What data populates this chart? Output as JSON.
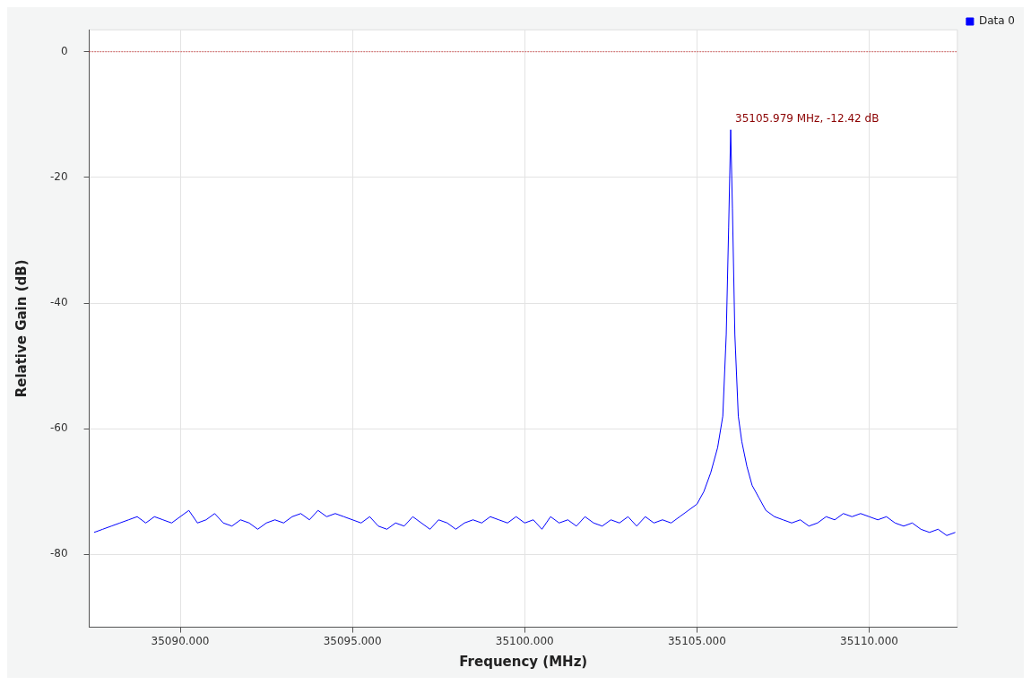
{
  "chart_data": {
    "type": "line",
    "xlabel": "Frequency (MHz)",
    "ylabel": "Relative Gain (dB)",
    "xlim": [
      35087.36,
      35112.56
    ],
    "ylim": [
      -91.6,
      3.5
    ],
    "xticks": [
      {
        "value": 35090,
        "label": "35090.000"
      },
      {
        "value": 35095,
        "label": "35095.000"
      },
      {
        "value": 35100,
        "label": "35100.000"
      },
      {
        "value": 35105,
        "label": "35105.000"
      },
      {
        "value": 35110,
        "label": "35110.000"
      }
    ],
    "yticks": [
      0,
      -20,
      -40,
      -60,
      -80
    ],
    "grid": true,
    "legend": "top right",
    "marker": "none",
    "line_style": "solid",
    "ref_lines": [
      {
        "axis": "y",
        "value": 0,
        "color": "#cc0000",
        "line_style": "dotted"
      }
    ],
    "annotations": [
      {
        "text": "35105.979 MHz, -12.42 dB",
        "x": 35105.979,
        "y": -12.42
      }
    ],
    "series": [
      {
        "name": "Data 0",
        "color": "#0000ff",
        "x": [
          35087.5,
          35087.75,
          35088,
          35088.25,
          35088.5,
          35088.75,
          35089,
          35089.25,
          35089.5,
          35089.75,
          35090,
          35090.25,
          35090.5,
          35090.75,
          35091,
          35091.25,
          35091.5,
          35091.75,
          35092,
          35092.25,
          35092.5,
          35092.75,
          35093,
          35093.25,
          35093.5,
          35093.75,
          35094,
          35094.25,
          35094.5,
          35094.75,
          35095,
          35095.25,
          35095.5,
          35095.75,
          35096,
          35096.25,
          35096.5,
          35096.75,
          35097,
          35097.25,
          35097.5,
          35097.75,
          35098,
          35098.25,
          35098.5,
          35098.75,
          35099,
          35099.25,
          35099.5,
          35099.75,
          35100,
          35100.25,
          35100.5,
          35100.75,
          35101,
          35101.25,
          35101.5,
          35101.75,
          35102,
          35102.25,
          35102.5,
          35102.75,
          35103,
          35103.25,
          35103.5,
          35103.75,
          35104,
          35104.25,
          35104.5,
          35104.75,
          35105,
          35105.2,
          35105.4,
          35105.6,
          35105.75,
          35105.85,
          35105.92,
          35105.979,
          35106.03,
          35106.1,
          35106.2,
          35106.3,
          35106.45,
          35106.6,
          35106.8,
          35107,
          35107.25,
          35107.5,
          35107.75,
          35108,
          35108.25,
          35108.5,
          35108.75,
          35109,
          35109.25,
          35109.5,
          35109.75,
          35110,
          35110.25,
          35110.5,
          35110.75,
          35111,
          35111.25,
          35111.5,
          35111.75,
          35112,
          35112.25,
          35112.5
        ],
        "values": [
          -76.5,
          -76,
          -75.5,
          -75,
          -74.5,
          -74,
          -75,
          -74,
          -74.5,
          -75,
          -74,
          -73,
          -75,
          -74.5,
          -73.5,
          -75,
          -75.5,
          -74.5,
          -75,
          -76,
          -75,
          -74.5,
          -75,
          -74,
          -73.5,
          -74.5,
          -73,
          -74,
          -73.5,
          -74,
          -74.5,
          -75,
          -74,
          -75.5,
          -76,
          -75,
          -75.5,
          -74,
          -75,
          -76,
          -74.5,
          -75,
          -76,
          -75,
          -74.5,
          -75,
          -74,
          -74.5,
          -75,
          -74,
          -75,
          -74.5,
          -76,
          -74,
          -75,
          -74.5,
          -75.5,
          -74,
          -75,
          -75.5,
          -74.5,
          -75,
          -74,
          -75.5,
          -74,
          -75,
          -74.5,
          -75,
          -74,
          -73,
          -72,
          -70,
          -67,
          -63,
          -58,
          -45,
          -28,
          -12.42,
          -25,
          -45,
          -58,
          -62,
          -66,
          -69,
          -71,
          -73,
          -74,
          -74.5,
          -75,
          -74.5,
          -75.5,
          -75,
          -74,
          -74.5,
          -73.5,
          -74,
          -73.5,
          -74,
          -74.5,
          -74,
          -75,
          -75.5,
          -75,
          -76,
          -76.5,
          -76,
          -77,
          -76.5
        ]
      }
    ]
  }
}
